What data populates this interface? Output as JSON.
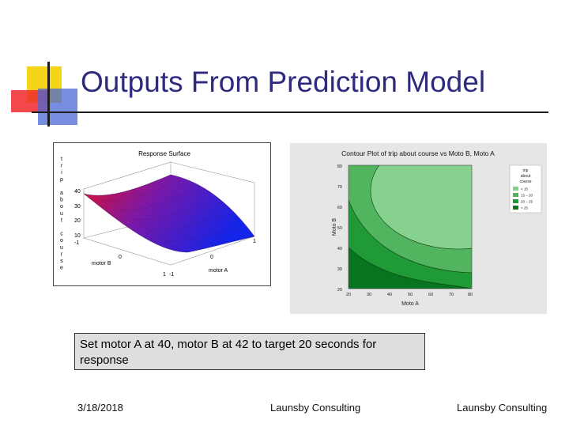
{
  "slide": {
    "title": "Outputs From Prediction Model",
    "note": "Set motor A at 40, motor B at 42 to target 20 seconds for response",
    "footer_date": "3/18/2018",
    "footer_center": "Launsby Consulting",
    "footer_right": "Launsby Consulting"
  },
  "surface_plot": {
    "title": "Response Surface",
    "zlabel_letters": [
      "t",
      "r",
      "i",
      "p",
      "",
      "a",
      "b",
      "o",
      "u",
      "t",
      "",
      "c",
      "o",
      "u",
      "r",
      "s",
      "e"
    ],
    "z_ticks": [
      "40",
      "30",
      "20",
      "10"
    ],
    "xlabel": "motor B",
    "ylabel": "motor A",
    "x_ticks": [
      "-1",
      "0",
      "1"
    ],
    "y_ticks": [
      "-1",
      "0",
      "1"
    ],
    "colors": {
      "high": "#e0102a",
      "low": "#1424e8"
    }
  },
  "contour_plot": {
    "title": "Contour Plot of trip about course vs Moto B, Moto A",
    "ylabel": "Moto B",
    "xlabel": "Moto A",
    "x_ticks": [
      "20",
      "30",
      "40",
      "50",
      "60",
      "70",
      "80"
    ],
    "y_ticks": [
      "80",
      "70",
      "60",
      "50",
      "40",
      "30",
      "20"
    ],
    "legend_title": [
      "trip",
      "about",
      "course"
    ],
    "legend_items": [
      {
        "label": "<  15",
        "color": "#86d18e"
      },
      {
        "label": "15 – 20",
        "color": "#52b45e"
      },
      {
        "label": "20 – 25",
        "color": "#1f9a36"
      },
      {
        "label": ">  25",
        "color": "#07741f"
      }
    ]
  }
}
